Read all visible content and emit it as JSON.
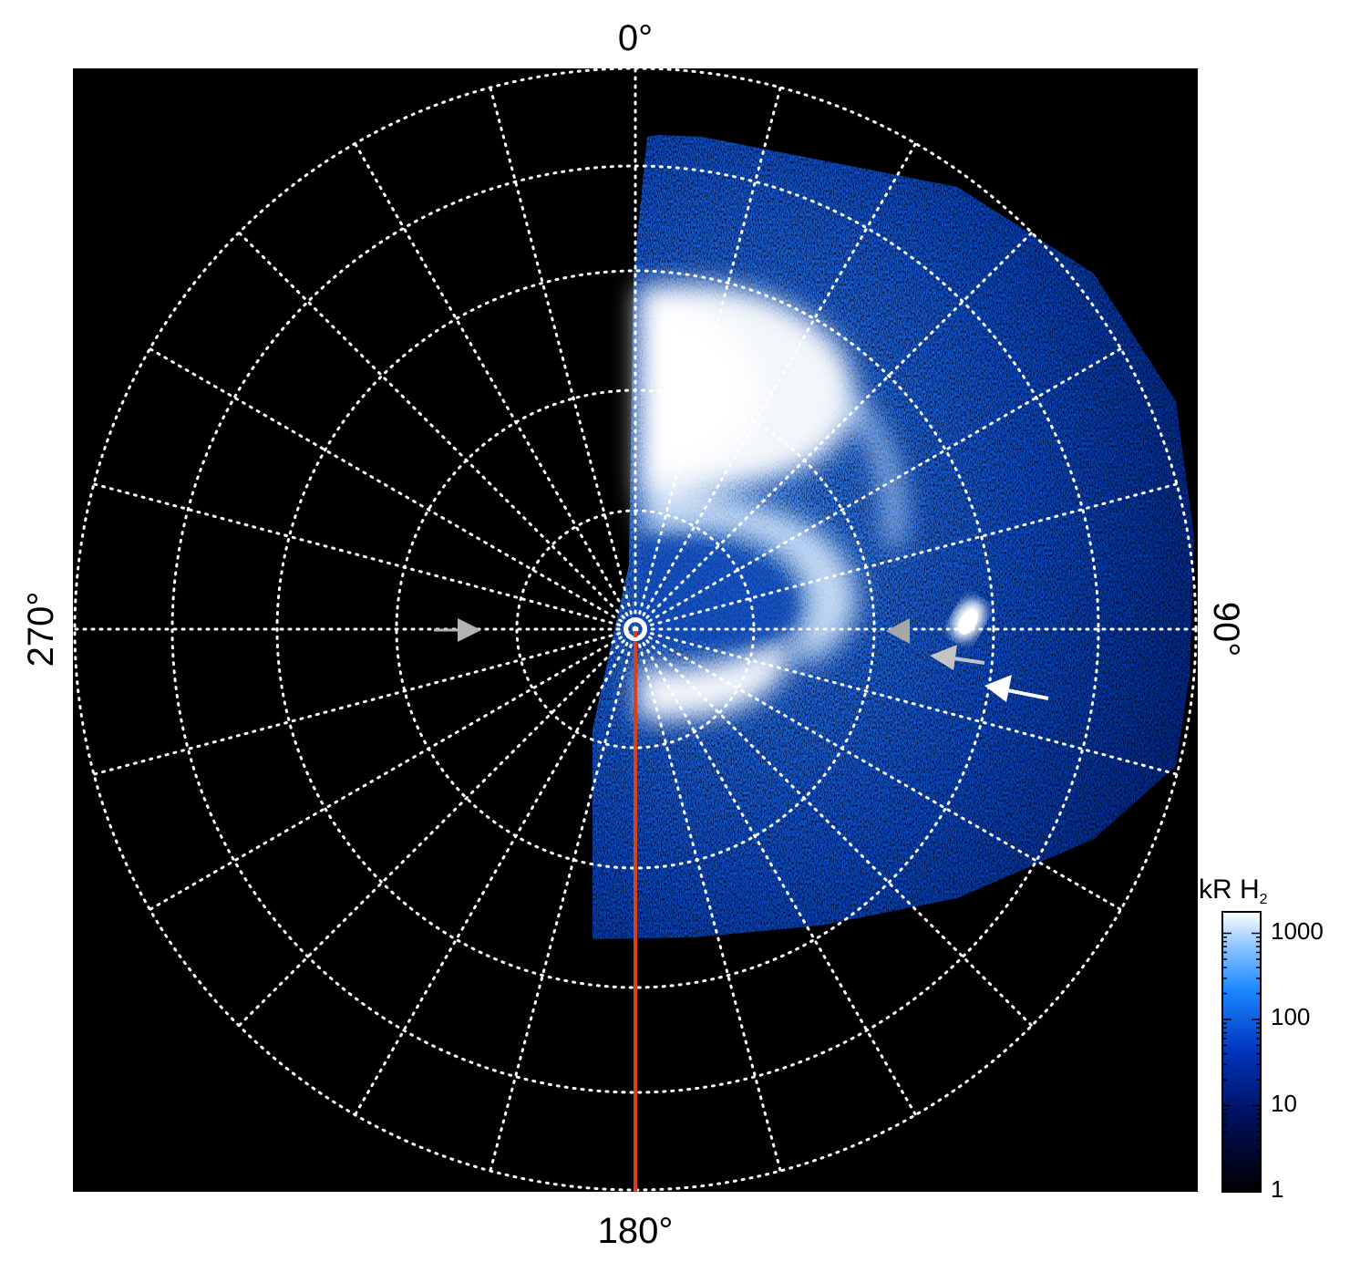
{
  "projection": {
    "labels": {
      "top": "0°",
      "bottom": "180°",
      "left": "270°",
      "right": "90°"
    }
  },
  "colorbar": {
    "title_main": "kR H",
    "title_sub": "2",
    "ticks": [
      "1000",
      "100",
      "10",
      "1"
    ],
    "scale": "log",
    "range": [
      1,
      1500
    ]
  },
  "colors": {
    "background": "#000000",
    "grid": "#ffffff",
    "meridian_line": "#d8401c",
    "arrow_white": "#ffffff",
    "arrow_gray": "#b4b4b4",
    "emission_low": "#001a6e",
    "emission_mid": "#1e7fff",
    "emission_high": "#ffffff"
  },
  "markers": [
    {
      "name": "gray-arrow-left",
      "color": "gray"
    },
    {
      "name": "gray-arrow-mid",
      "color": "gray"
    },
    {
      "name": "gray-arrow-lower",
      "color": "gray"
    },
    {
      "name": "white-arrow-lower",
      "color": "white"
    }
  ]
}
